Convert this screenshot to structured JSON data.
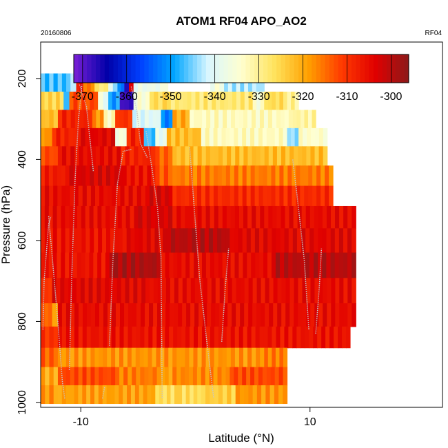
{
  "chart_data": {
    "type": "heatmap",
    "title": "ATOM1 RF04 APO_AO2",
    "date_label": "20160806",
    "flight_label": "RF04",
    "xlabel": "Latitude (°N)",
    "ylabel": "Pressure (hPa)",
    "xlim": [
      -13.5,
      21.5
    ],
    "ylim": [
      1012,
      110
    ],
    "x_ticks": [
      -10,
      10
    ],
    "y_ticks": [
      200,
      400,
      600,
      800,
      1000
    ],
    "colorbar": {
      "range": [
        -372,
        -296
      ],
      "ticks": [
        -370,
        -360,
        -350,
        -340,
        -330,
        -320,
        -310,
        -300
      ],
      "colors": [
        "#7a1fd6",
        "#0000a8",
        "#0040ff",
        "#00a6ff",
        "#d8f6ff",
        "#ffffd0",
        "#ffe35c",
        "#ffa000",
        "#ff3a00",
        "#e00000",
        "#8b1a1a"
      ]
    },
    "pressure_levels": [
      210,
      255,
      300,
      345,
      390,
      440,
      490,
      540,
      600,
      660,
      725,
      785,
      840,
      890,
      935,
      980
    ],
    "bands": [
      {
        "p": 210,
        "segments": [
          [
            -13.5,
            -10.9,
            -347
          ],
          [
            -10.9,
            -10.4,
            -340
          ],
          [
            -10.4,
            -9.8,
            -306
          ],
          [
            -9.8,
            -8.8,
            -316
          ],
          [
            -8.8,
            -7.6,
            -328
          ],
          [
            -7.6,
            -6.8,
            -342
          ],
          [
            -6.8,
            -6.2,
            -352
          ],
          [
            -6.2,
            -5.8,
            -366
          ],
          [
            -5.8,
            -5.4,
            -302
          ],
          [
            -5.4,
            -3.1,
            -338
          ],
          [
            -3.1,
            -2.4,
            -336
          ],
          [
            1.3,
            2.5,
            -336
          ],
          [
            2.5,
            6.0,
            -343
          ]
        ]
      },
      {
        "p": 255,
        "segments": [
          [
            -13.5,
            -11.5,
            -325
          ],
          [
            -11.5,
            -11.0,
            -345
          ],
          [
            -11.0,
            -8.5,
            -312
          ],
          [
            -8.5,
            -7.6,
            -338
          ],
          [
            -7.6,
            -6.6,
            -350
          ],
          [
            -6.6,
            -5.4,
            -368
          ],
          [
            -5.4,
            -4.0,
            -335
          ],
          [
            -4.0,
            -2.5,
            -326
          ],
          [
            -2.5,
            5.0,
            -328
          ],
          [
            5.0,
            6.0,
            -335
          ],
          [
            6.0,
            8.0,
            -326
          ],
          [
            8.0,
            9.0,
            -330
          ]
        ]
      },
      {
        "p": 300,
        "segments": [
          [
            -13.5,
            -12.0,
            -322
          ],
          [
            -12.0,
            -9.0,
            -308
          ],
          [
            -9.0,
            -8.0,
            -318
          ],
          [
            -8.0,
            -7.0,
            -333
          ],
          [
            -7.0,
            -5.5,
            -310
          ],
          [
            -5.5,
            -3.0,
            -340
          ],
          [
            -3.0,
            -2.0,
            -352
          ],
          [
            -2.0,
            -0.5,
            -320
          ],
          [
            -0.5,
            8.5,
            -333
          ],
          [
            8.5,
            10.5,
            -331
          ]
        ]
      },
      {
        "p": 345,
        "segments": [
          [
            -13.5,
            -12.5,
            -318
          ],
          [
            -12.5,
            -10.0,
            -308
          ],
          [
            -10.0,
            -7.0,
            -304
          ],
          [
            -7.0,
            -6.0,
            -336
          ],
          [
            -6.0,
            -4.5,
            -308
          ],
          [
            -4.5,
            -3.5,
            -347
          ],
          [
            -3.5,
            -2.5,
            -339
          ],
          [
            -2.5,
            0.5,
            -322
          ],
          [
            0.5,
            8.0,
            -333
          ],
          [
            8.0,
            9.0,
            -344
          ],
          [
            9.0,
            11.5,
            -334
          ]
        ]
      },
      {
        "p": 390,
        "segments": [
          [
            -13.5,
            -12.0,
            -312
          ],
          [
            -12.0,
            -6.5,
            -305
          ],
          [
            -6.5,
            -3.5,
            -308
          ],
          [
            -3.5,
            -2.0,
            -314
          ],
          [
            -2.0,
            11.5,
            -322
          ]
        ]
      },
      {
        "p": 440,
        "segments": [
          [
            -13.5,
            -11.0,
            -307
          ],
          [
            -11.0,
            -6.0,
            -303
          ],
          [
            -6.0,
            -3.5,
            -306
          ],
          [
            -3.5,
            -2.0,
            -313
          ],
          [
            -2.0,
            12.0,
            -316
          ]
        ]
      },
      {
        "p": 490,
        "segments": [
          [
            -13.5,
            -4.0,
            -305
          ],
          [
            -4.0,
            -2.0,
            -303
          ],
          [
            -2.0,
            12.0,
            -309
          ]
        ]
      },
      {
        "p": 540,
        "segments": [
          [
            -13.5,
            -5.0,
            -305
          ],
          [
            -5.0,
            -2.0,
            -303
          ],
          [
            -2.0,
            14.0,
            -305
          ]
        ]
      },
      {
        "p": 600,
        "segments": [
          [
            -13.5,
            -6.0,
            -306
          ],
          [
            -6.0,
            -2.5,
            -304
          ],
          [
            -2.5,
            3.0,
            -300
          ],
          [
            3.0,
            14.0,
            -304
          ]
        ]
      },
      {
        "p": 660,
        "segments": [
          [
            -13.5,
            -7.5,
            -306
          ],
          [
            -7.5,
            -3.0,
            -299
          ],
          [
            -3.0,
            2.0,
            -305
          ],
          [
            2.0,
            7.0,
            -305
          ],
          [
            7.0,
            14.0,
            -300
          ]
        ]
      },
      {
        "p": 725,
        "segments": [
          [
            -13.5,
            -12.5,
            -310
          ],
          [
            -12.5,
            -4.0,
            -304
          ],
          [
            -4.0,
            14.0,
            -305
          ]
        ]
      },
      {
        "p": 785,
        "segments": [
          [
            -13.5,
            -12.5,
            -314
          ],
          [
            -12.5,
            -12.0,
            -322
          ],
          [
            -12.0,
            14.0,
            -305
          ]
        ]
      },
      {
        "p": 840,
        "segments": [
          [
            -13.5,
            -12.0,
            -310
          ],
          [
            -12.0,
            13.5,
            -306
          ]
        ]
      },
      {
        "p": 890,
        "segments": [
          [
            -13.5,
            -12.0,
            -314
          ],
          [
            -12.0,
            -2.0,
            -318
          ],
          [
            -2.0,
            6.0,
            -318
          ],
          [
            6.0,
            8.0,
            -316
          ]
        ]
      },
      {
        "p": 935,
        "segments": [
          [
            -13.5,
            -12.0,
            -320
          ],
          [
            -12.0,
            -7.0,
            -312
          ],
          [
            -7.0,
            -3.0,
            -316
          ],
          [
            -3.0,
            -2.0,
            -319
          ],
          [
            -2.0,
            3.0,
            -317
          ],
          [
            3.0,
            8.0,
            -312
          ]
        ]
      },
      {
        "p": 980,
        "segments": [
          [
            -13.5,
            -12.0,
            -318
          ],
          [
            -12.0,
            -3.5,
            -319
          ],
          [
            -3.5,
            -1.5,
            -326
          ],
          [
            -1.5,
            0.5,
            -326
          ],
          [
            0.5,
            3.5,
            -324
          ],
          [
            3.5,
            8.0,
            -318
          ]
        ]
      }
    ],
    "flight_track": [
      [
        [
          -13.3,
          820
        ],
        [
          -13.2,
          700
        ],
        [
          -12.8,
          560
        ],
        [
          -12.6,
          540
        ]
      ],
      [
        [
          -12.8,
          540
        ],
        [
          -12.4,
          670
        ],
        [
          -12.0,
          800
        ],
        [
          -11.6,
          950
        ],
        [
          -11.4,
          990
        ]
      ],
      [
        [
          -11.0,
          920
        ],
        [
          -10.8,
          700
        ],
        [
          -10.5,
          450
        ],
        [
          -10.2,
          300
        ],
        [
          -9.9,
          215
        ]
      ],
      [
        [
          -10.1,
          215
        ],
        [
          -9.5,
          270
        ],
        [
          -9.2,
          350
        ],
        [
          -8.9,
          430
        ]
      ],
      [
        [
          -8.1,
          990
        ],
        [
          -7.9,
          960
        ]
      ],
      [
        [
          -7.5,
          860
        ],
        [
          -7.2,
          650
        ],
        [
          -6.8,
          460
        ],
        [
          -6.3,
          380
        ],
        [
          -5.6,
          375
        ]
      ],
      [
        [
          -5.6,
          220
        ],
        [
          -5.1,
          280
        ],
        [
          -4.8,
          360
        ],
        [
          -4.2,
          395
        ]
      ],
      [
        [
          -4.3,
          330
        ],
        [
          -3.8,
          420
        ],
        [
          -3.3,
          520
        ],
        [
          -3.0,
          640
        ],
        [
          -2.9,
          990
        ]
      ],
      [
        [
          -0.5,
          370
        ],
        [
          -0.1,
          520
        ],
        [
          0.4,
          700
        ],
        [
          1.0,
          850
        ],
        [
          1.6,
          990
        ]
      ],
      [
        [
          2.3,
          850
        ],
        [
          2.6,
          720
        ],
        [
          2.9,
          620
        ]
      ],
      [
        [
          8.5,
          400
        ],
        [
          9.0,
          520
        ],
        [
          9.5,
          650
        ],
        [
          9.9,
          820
        ]
      ],
      [
        [
          10.5,
          830
        ],
        [
          10.8,
          720
        ],
        [
          11.0,
          620
        ]
      ]
    ]
  }
}
